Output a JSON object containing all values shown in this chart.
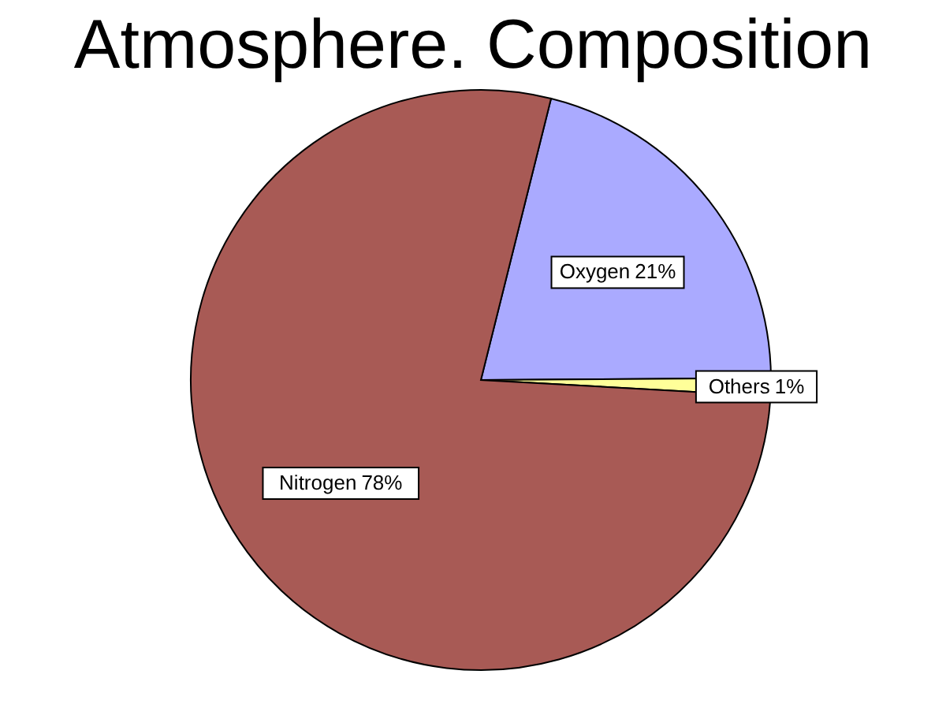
{
  "chart_data": {
    "type": "pie",
    "title": "Atmosphere. Composition",
    "categories": [
      "Oxygen",
      "Others",
      "Nitrogen"
    ],
    "values": [
      21,
      1,
      78
    ],
    "colors": [
      "#aaaaff",
      "#ffff99",
      "#a85a55"
    ],
    "value_labels": [
      "21%",
      "1%",
      "78%"
    ],
    "legend": false
  }
}
